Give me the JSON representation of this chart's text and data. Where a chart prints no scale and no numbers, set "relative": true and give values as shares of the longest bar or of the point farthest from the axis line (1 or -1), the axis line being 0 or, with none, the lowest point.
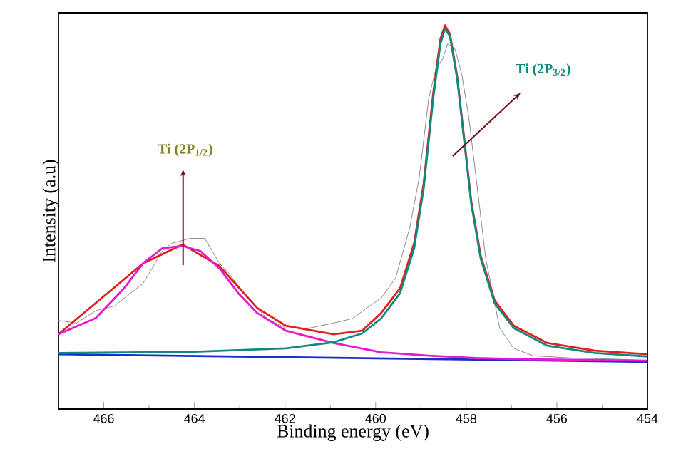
{
  "chart_data": {
    "type": "line",
    "xlabel": "Binding energy (eV)",
    "ylabel": "Intensity (a.u)",
    "relative": true,
    "tick_labels": "x",
    "xlim": [
      467,
      454
    ],
    "xticks": [
      466,
      464,
      462,
      460,
      458,
      456,
      454
    ],
    "series": [
      {
        "color": "#8c8c8c",
        "x": [
          467,
          466.6,
          466.18,
          465.76,
          465.55,
          465.13,
          464.71,
          464.5,
          464.09,
          463.77,
          463.45,
          463.24,
          462.82,
          462.4,
          461.98,
          461.46,
          460.93,
          460.51,
          460.2,
          459.88,
          459.56,
          459.25,
          459.04,
          458.83,
          458.67,
          458.52,
          458.41,
          458.25,
          458.1,
          457.94,
          457.78,
          457.57,
          457.26,
          456.95,
          456.53,
          455.69,
          454.64,
          454
        ],
        "values": [
          0.231,
          0.224,
          0.256,
          0.269,
          0.289,
          0.328,
          0.412,
          0.432,
          0.445,
          0.445,
          0.38,
          0.354,
          0.289,
          0.236,
          0.211,
          0.211,
          0.224,
          0.236,
          0.263,
          0.289,
          0.341,
          0.471,
          0.601,
          0.809,
          0.887,
          0.913,
          0.952,
          0.939,
          0.874,
          0.757,
          0.601,
          0.392,
          0.211,
          0.158,
          0.139,
          0.133,
          0.13,
          0.126
        ]
      },
      {
        "color": "#1a2ecc",
        "x": [
          467,
          454
        ],
        "values": [
          0.143,
          0.123
        ]
      },
      {
        "color": "#e0201b",
        "x": [
          467,
          465.13,
          464.26,
          463.45,
          462.61,
          461.98,
          460.93,
          460.3,
          459.88,
          459.46,
          459.15,
          458.94,
          458.73,
          458.57,
          458.47,
          458.36,
          458.2,
          458.05,
          457.89,
          457.68,
          457.37,
          456.95,
          456.21,
          455.16,
          454
        ],
        "values": [
          0.195,
          0.38,
          0.429,
          0.373,
          0.263,
          0.217,
          0.195,
          0.204,
          0.25,
          0.315,
          0.432,
          0.588,
          0.822,
          0.965,
          1.0,
          0.978,
          0.867,
          0.711,
          0.542,
          0.399,
          0.282,
          0.217,
          0.172,
          0.152,
          0.143
        ]
      },
      {
        "color": "#e619d1",
        "x": [
          467,
          466.18,
          465.55,
          465.13,
          464.71,
          464.26,
          463.87,
          463.45,
          463.03,
          462.61,
          461.98,
          460.93,
          459.88,
          458.83,
          457.78,
          456.73,
          454
        ],
        "values": [
          0.195,
          0.237,
          0.315,
          0.38,
          0.419,
          0.425,
          0.412,
          0.367,
          0.302,
          0.25,
          0.204,
          0.172,
          0.148,
          0.139,
          0.133,
          0.13,
          0.126
        ]
      },
      {
        "color": "#108a80",
        "x": [
          467,
          464.09,
          461.98,
          460.93,
          460.3,
          459.88,
          459.46,
          459.15,
          458.94,
          458.73,
          458.57,
          458.47,
          458.36,
          458.2,
          458.05,
          457.89,
          457.68,
          457.37,
          456.95,
          456.21,
          455.16,
          454
        ],
        "values": [
          0.146,
          0.149,
          0.158,
          0.174,
          0.197,
          0.236,
          0.302,
          0.419,
          0.575,
          0.809,
          0.952,
          0.991,
          0.972,
          0.861,
          0.705,
          0.536,
          0.392,
          0.275,
          0.211,
          0.165,
          0.146,
          0.137
        ]
      }
    ],
    "annotations": [
      "Ti (2P$_{1/2}$)",
      "Ti (2P$_{3/2}$)"
    ]
  }
}
